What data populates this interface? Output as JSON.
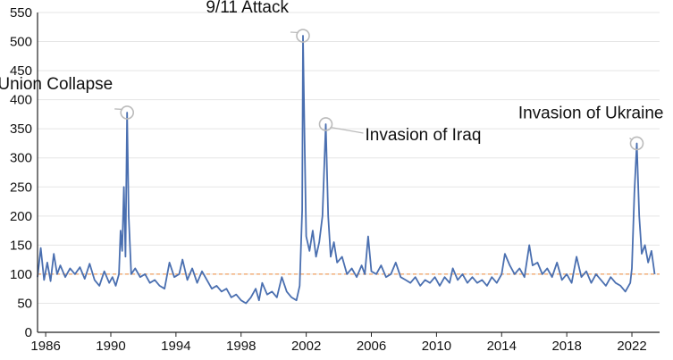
{
  "chart_data": {
    "type": "line",
    "title": "",
    "xlabel": "",
    "ylabel": "",
    "xlim": [
      1985.5,
      2023.7
    ],
    "ylim": [
      0,
      550
    ],
    "grid": "horizontal",
    "x_ticks": [
      "1986",
      "1990",
      "1994",
      "1998",
      "2002",
      "2006",
      "2010",
      "2014",
      "2018",
      "2022"
    ],
    "y_ticks": [
      "0",
      "50",
      "100",
      "150",
      "200",
      "250",
      "300",
      "350",
      "400",
      "450",
      "500",
      "550"
    ],
    "reference_line": {
      "y": 100,
      "style": "dashed",
      "color": "#f0a060"
    },
    "colors": {
      "series": "#4a6fb0",
      "grid": "#e5e5e5",
      "axis": "#222222",
      "marker": "#bbbbbb"
    },
    "annotations": [
      {
        "label": "Soviet Union Collapse",
        "x": 1991.0,
        "y": 378,
        "side": "left"
      },
      {
        "label": "9/11 Attack",
        "x": 2001.8,
        "y": 510,
        "side": "left"
      },
      {
        "label": "Invasion of Iraq",
        "x": 2003.2,
        "y": 358,
        "side": "right"
      },
      {
        "label": "Invasion of Ukraine",
        "x": 2022.3,
        "y": 325,
        "side": "above"
      }
    ],
    "series": [
      {
        "values": [
          [
            1985.5,
            95
          ],
          [
            1985.7,
            145
          ],
          [
            1985.9,
            90
          ],
          [
            1986.1,
            120
          ],
          [
            1986.3,
            88
          ],
          [
            1986.5,
            135
          ],
          [
            1986.7,
            100
          ],
          [
            1986.9,
            115
          ],
          [
            1987.2,
            95
          ],
          [
            1987.5,
            110
          ],
          [
            1987.8,
            100
          ],
          [
            1988.1,
            112
          ],
          [
            1988.4,
            92
          ],
          [
            1988.7,
            118
          ],
          [
            1989.0,
            90
          ],
          [
            1989.3,
            80
          ],
          [
            1989.6,
            105
          ],
          [
            1989.9,
            85
          ],
          [
            1990.1,
            95
          ],
          [
            1990.3,
            80
          ],
          [
            1990.5,
            100
          ],
          [
            1990.6,
            175
          ],
          [
            1990.7,
            140
          ],
          [
            1990.8,
            250
          ],
          [
            1990.9,
            130
          ],
          [
            1991.0,
            378
          ],
          [
            1991.1,
            200
          ],
          [
            1991.25,
            100
          ],
          [
            1991.5,
            110
          ],
          [
            1991.8,
            95
          ],
          [
            1992.1,
            100
          ],
          [
            1992.4,
            85
          ],
          [
            1992.7,
            90
          ],
          [
            1993.0,
            80
          ],
          [
            1993.3,
            75
          ],
          [
            1993.6,
            120
          ],
          [
            1993.9,
            95
          ],
          [
            1994.2,
            100
          ],
          [
            1994.4,
            125
          ],
          [
            1994.7,
            90
          ],
          [
            1995.0,
            110
          ],
          [
            1995.3,
            85
          ],
          [
            1995.6,
            105
          ],
          [
            1995.9,
            90
          ],
          [
            1996.2,
            75
          ],
          [
            1996.5,
            80
          ],
          [
            1996.8,
            70
          ],
          [
            1997.1,
            75
          ],
          [
            1997.4,
            60
          ],
          [
            1997.7,
            65
          ],
          [
            1998.0,
            55
          ],
          [
            1998.3,
            50
          ],
          [
            1998.6,
            60
          ],
          [
            1998.9,
            75
          ],
          [
            1999.1,
            55
          ],
          [
            1999.3,
            85
          ],
          [
            1999.6,
            65
          ],
          [
            1999.9,
            70
          ],
          [
            2000.2,
            60
          ],
          [
            2000.5,
            95
          ],
          [
            2000.8,
            70
          ],
          [
            2001.1,
            60
          ],
          [
            2001.4,
            55
          ],
          [
            2001.6,
            80
          ],
          [
            2001.75,
            210
          ],
          [
            2001.8,
            510
          ],
          [
            2001.9,
            330
          ],
          [
            2002.0,
            165
          ],
          [
            2002.2,
            140
          ],
          [
            2002.4,
            175
          ],
          [
            2002.6,
            130
          ],
          [
            2002.8,
            155
          ],
          [
            2003.0,
            200
          ],
          [
            2003.2,
            358
          ],
          [
            2003.35,
            200
          ],
          [
            2003.5,
            130
          ],
          [
            2003.7,
            155
          ],
          [
            2003.9,
            120
          ],
          [
            2004.2,
            130
          ],
          [
            2004.5,
            100
          ],
          [
            2004.8,
            110
          ],
          [
            2005.1,
            95
          ],
          [
            2005.4,
            115
          ],
          [
            2005.6,
            100
          ],
          [
            2005.8,
            165
          ],
          [
            2006.0,
            105
          ],
          [
            2006.3,
            100
          ],
          [
            2006.6,
            115
          ],
          [
            2006.9,
            95
          ],
          [
            2007.2,
            100
          ],
          [
            2007.5,
            120
          ],
          [
            2007.8,
            95
          ],
          [
            2008.1,
            90
          ],
          [
            2008.4,
            85
          ],
          [
            2008.7,
            95
          ],
          [
            2009.0,
            80
          ],
          [
            2009.3,
            90
          ],
          [
            2009.6,
            85
          ],
          [
            2009.9,
            95
          ],
          [
            2010.2,
            80
          ],
          [
            2010.5,
            95
          ],
          [
            2010.8,
            85
          ],
          [
            2011.0,
            110
          ],
          [
            2011.3,
            90
          ],
          [
            2011.6,
            100
          ],
          [
            2011.9,
            85
          ],
          [
            2012.2,
            95
          ],
          [
            2012.5,
            85
          ],
          [
            2012.8,
            90
          ],
          [
            2013.1,
            80
          ],
          [
            2013.4,
            95
          ],
          [
            2013.7,
            85
          ],
          [
            2014.0,
            100
          ],
          [
            2014.2,
            135
          ],
          [
            2014.5,
            115
          ],
          [
            2014.8,
            100
          ],
          [
            2015.1,
            110
          ],
          [
            2015.4,
            95
          ],
          [
            2015.7,
            150
          ],
          [
            2015.9,
            115
          ],
          [
            2016.2,
            120
          ],
          [
            2016.5,
            100
          ],
          [
            2016.8,
            110
          ],
          [
            2017.1,
            95
          ],
          [
            2017.4,
            120
          ],
          [
            2017.7,
            90
          ],
          [
            2018.0,
            100
          ],
          [
            2018.3,
            85
          ],
          [
            2018.6,
            130
          ],
          [
            2018.9,
            95
          ],
          [
            2019.2,
            105
          ],
          [
            2019.5,
            85
          ],
          [
            2019.8,
            100
          ],
          [
            2020.1,
            90
          ],
          [
            2020.4,
            80
          ],
          [
            2020.7,
            95
          ],
          [
            2021.0,
            85
          ],
          [
            2021.3,
            80
          ],
          [
            2021.6,
            70
          ],
          [
            2021.9,
            85
          ],
          [
            2022.0,
            110
          ],
          [
            2022.15,
            240
          ],
          [
            2022.3,
            325
          ],
          [
            2022.45,
            200
          ],
          [
            2022.6,
            135
          ],
          [
            2022.8,
            150
          ],
          [
            2023.0,
            120
          ],
          [
            2023.2,
            140
          ],
          [
            2023.4,
            100
          ]
        ]
      }
    ]
  }
}
